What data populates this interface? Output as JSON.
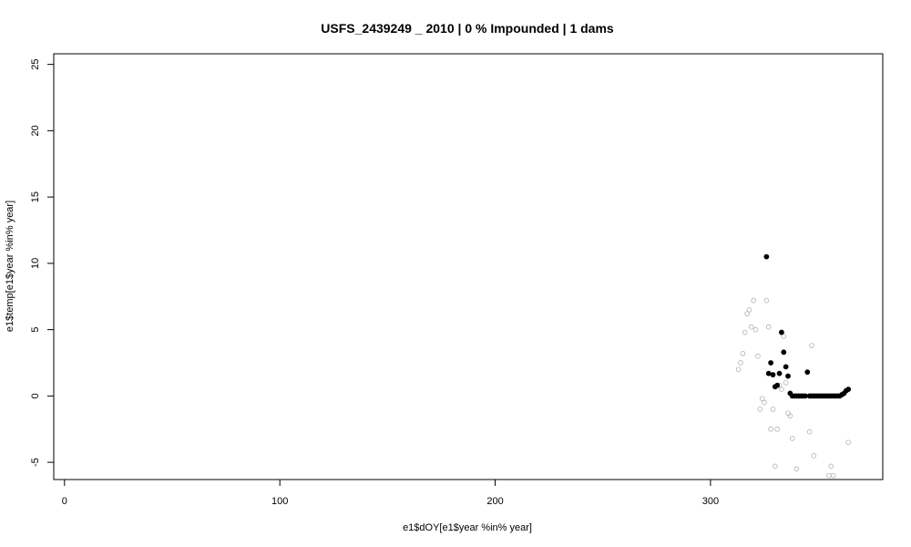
{
  "chart_data": {
    "type": "scatter",
    "title": "USFS_2439249 _ 2010   |   0  % Impounded |  1  dams",
    "xlabel": "e1$dOY[e1$year %in% year]",
    "ylabel": "e1$temp[e1$year %in% year]",
    "xlim": [
      -5,
      380
    ],
    "ylim": [
      -6.3,
      25.8
    ],
    "xticks": [
      0,
      100,
      200,
      300
    ],
    "yticks": [
      -5,
      0,
      5,
      10,
      15,
      20,
      25
    ],
    "grid": false,
    "background": "#ffffff",
    "series": [
      {
        "marker": "open-circle",
        "color": "#b0b0b0",
        "points": [
          [
            313,
            2.0
          ],
          [
            314,
            2.5
          ],
          [
            315,
            3.2
          ],
          [
            316,
            4.8
          ],
          [
            317,
            6.2
          ],
          [
            318,
            6.5
          ],
          [
            319,
            5.2
          ],
          [
            320,
            7.2
          ],
          [
            321,
            5.0
          ],
          [
            322,
            3.0
          ],
          [
            323,
            -1.0
          ],
          [
            324,
            -0.2
          ],
          [
            325,
            -0.5
          ],
          [
            326,
            7.2
          ],
          [
            327,
            5.2
          ],
          [
            328,
            -2.5
          ],
          [
            329,
            -1.0
          ],
          [
            330,
            -5.3
          ],
          [
            331,
            -2.5
          ],
          [
            332,
            0.8
          ],
          [
            333,
            0.5
          ],
          [
            334,
            4.5
          ],
          [
            335,
            1.0
          ],
          [
            336,
            -1.3
          ],
          [
            337,
            -1.5
          ],
          [
            338,
            -3.2
          ],
          [
            340,
            -5.5
          ],
          [
            346,
            -2.7
          ],
          [
            347,
            3.8
          ],
          [
            348,
            -4.5
          ],
          [
            355,
            -6.0
          ],
          [
            356,
            -5.3
          ],
          [
            357,
            -6.0
          ],
          [
            364,
            -3.5
          ]
        ]
      },
      {
        "marker": "filled-circle",
        "color": "#000000",
        "points": [
          [
            326,
            10.5
          ],
          [
            327,
            1.7
          ],
          [
            328,
            2.5
          ],
          [
            329,
            1.6
          ],
          [
            330,
            0.7
          ],
          [
            331,
            0.8
          ],
          [
            332,
            1.7
          ],
          [
            333,
            4.8
          ],
          [
            334,
            3.3
          ],
          [
            335,
            2.2
          ],
          [
            336,
            1.5
          ],
          [
            337,
            0.2
          ],
          [
            338,
            0.0
          ],
          [
            339,
            0.0
          ],
          [
            340,
            0.0
          ],
          [
            341,
            0.0
          ],
          [
            342,
            0.0
          ],
          [
            343,
            0.0
          ],
          [
            344,
            0.0
          ],
          [
            345,
            1.8
          ],
          [
            346,
            0.0
          ],
          [
            347,
            0.0
          ],
          [
            348,
            0.0
          ],
          [
            349,
            0.0
          ],
          [
            350,
            0.0
          ],
          [
            351,
            0.0
          ],
          [
            352,
            0.0
          ],
          [
            353,
            0.0
          ],
          [
            354,
            0.0
          ],
          [
            355,
            0.0
          ],
          [
            356,
            0.0
          ],
          [
            357,
            0.0
          ],
          [
            358,
            0.0
          ],
          [
            359,
            0.0
          ],
          [
            360,
            0.0
          ],
          [
            361,
            0.1
          ],
          [
            362,
            0.2
          ],
          [
            363,
            0.4
          ],
          [
            364,
            0.5
          ]
        ]
      }
    ]
  }
}
